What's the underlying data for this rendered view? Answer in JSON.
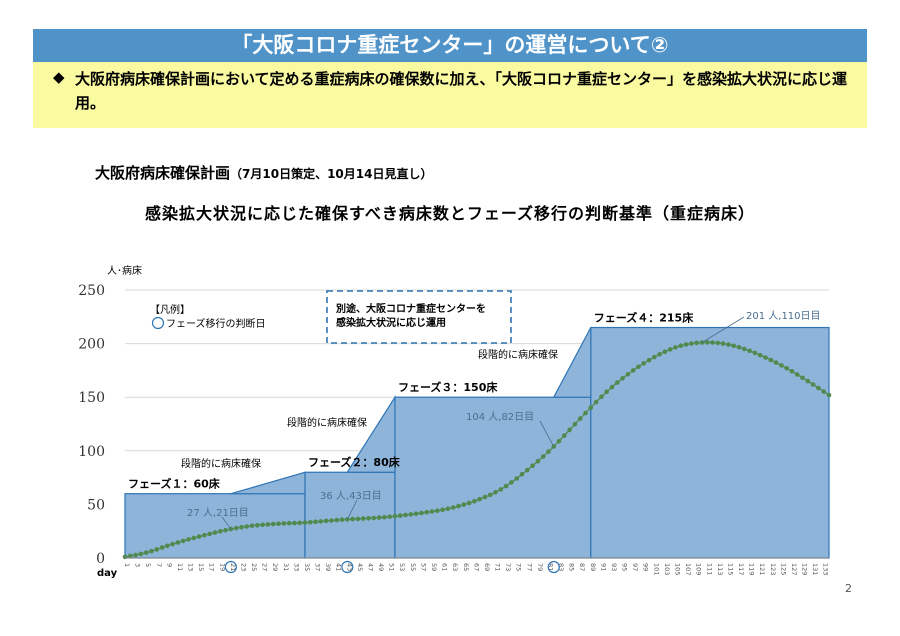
{
  "header": {
    "title": "「大阪コロナ重症センター」の運営について②"
  },
  "summary": {
    "bullet": "◆",
    "text": "大阪府病床確保計画において定める重症病床の確保数に加え、「大阪コロナ重症センター」を感染拡大状況に応じ運用。"
  },
  "plan": {
    "title": "大阪府病床確保計画",
    "subtitle": "（7月10日策定、10月14日見直し）"
  },
  "chart_title": "感染拡大状況に応じた確保すべき病床数とフェーズ移行の判断基準（重症病床）",
  "page_number": "2",
  "chart_data": {
    "type": "area",
    "ylabel": "人･病床",
    "xlabel": "day",
    "ylim": [
      0,
      250
    ],
    "yticks": [
      0,
      50,
      100,
      150,
      200,
      250
    ],
    "xlim": [
      1,
      134
    ],
    "xticks": [
      1,
      3,
      5,
      7,
      9,
      11,
      13,
      15,
      17,
      19,
      21,
      23,
      25,
      27,
      29,
      31,
      33,
      35,
      37,
      39,
      41,
      43,
      45,
      47,
      49,
      51,
      53,
      55,
      57,
      59,
      61,
      63,
      65,
      67,
      69,
      71,
      73,
      75,
      77,
      79,
      81,
      83,
      85,
      87,
      89,
      91,
      93,
      95,
      97,
      99,
      101,
      103,
      105,
      107,
      109,
      111,
      113,
      115,
      117,
      119,
      121,
      123,
      125,
      127,
      129,
      131,
      133
    ],
    "legend": {
      "title": "【凡例】",
      "item": "フェーズ移行の判断日"
    },
    "note": "別途、大阪コロナ重症センターを感染拡大状況に応じ運用",
    "phases": [
      {
        "label": "フェーズ１：60床",
        "start": 1,
        "end": 35,
        "beds": 60
      },
      {
        "label": "フェーズ２：80床",
        "start": 35,
        "end": 52,
        "beds": 80
      },
      {
        "label": "フェーズ３：150床",
        "start": 52,
        "end": 89,
        "beds": 150
      },
      {
        "label": "フェーズ４：215床",
        "start": 89,
        "end": 134,
        "beds": 215
      }
    ],
    "ramps": [
      {
        "label": "段階的に病床確保",
        "from_day": 21,
        "to_day": 35,
        "from_beds": 60,
        "to_beds": 80
      },
      {
        "label": "段階的に病床確保",
        "from_day": 43,
        "to_day": 52,
        "from_beds": 80,
        "to_beds": 150
      },
      {
        "label": "段階的に病床確保",
        "from_day": 82,
        "to_day": 89,
        "from_beds": 150,
        "to_beds": 215
      }
    ],
    "decision_days": [
      21,
      43,
      82
    ],
    "annotations": [
      {
        "text": "27 人,21日目",
        "day": 21,
        "value": 27
      },
      {
        "text": "36 人,43日目",
        "day": 43,
        "value": 36
      },
      {
        "text": "104 人,82日目",
        "day": 82,
        "value": 104
      },
      {
        "text": "201 人,110日目",
        "day": 110,
        "value": 201
      }
    ],
    "patients": [
      {
        "day": 1,
        "value": 1
      },
      {
        "day": 5,
        "value": 5
      },
      {
        "day": 10,
        "value": 13
      },
      {
        "day": 15,
        "value": 20
      },
      {
        "day": 21,
        "value": 27
      },
      {
        "day": 25,
        "value": 30
      },
      {
        "day": 30,
        "value": 32
      },
      {
        "day": 35,
        "value": 33
      },
      {
        "day": 40,
        "value": 35
      },
      {
        "day": 43,
        "value": 36
      },
      {
        "day": 47,
        "value": 37
      },
      {
        "day": 52,
        "value": 39
      },
      {
        "day": 57,
        "value": 42
      },
      {
        "day": 62,
        "value": 46
      },
      {
        "day": 67,
        "value": 53
      },
      {
        "day": 72,
        "value": 64
      },
      {
        "day": 77,
        "value": 82
      },
      {
        "day": 82,
        "value": 104
      },
      {
        "day": 87,
        "value": 130
      },
      {
        "day": 92,
        "value": 155
      },
      {
        "day": 97,
        "value": 175
      },
      {
        "day": 102,
        "value": 190
      },
      {
        "day": 106,
        "value": 198
      },
      {
        "day": 110,
        "value": 201
      },
      {
        "day": 114,
        "value": 200
      },
      {
        "day": 118,
        "value": 195
      },
      {
        "day": 122,
        "value": 187
      },
      {
        "day": 126,
        "value": 177
      },
      {
        "day": 130,
        "value": 165
      },
      {
        "day": 134,
        "value": 152
      }
    ]
  }
}
